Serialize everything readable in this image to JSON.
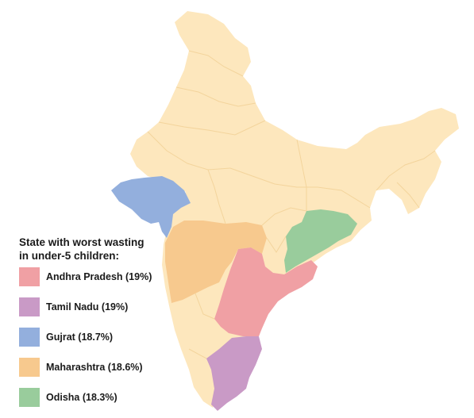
{
  "legend": {
    "title_line1": "State with worst wasting",
    "title_line2": "in under-5 children:",
    "items": [
      {
        "label": "Andhra Pradesh (19%)",
        "color": "#f0a0a4"
      },
      {
        "label": "Tamil Nadu (19%)",
        "color": "#c99ac6"
      },
      {
        "label": "Gujrat (18.7%)",
        "color": "#93afdd"
      },
      {
        "label": "Maharashtra (18.6%)",
        "color": "#f7c98e"
      },
      {
        "label": "Odisha (18.3%)",
        "color": "#99cc9c"
      }
    ]
  },
  "colors": {
    "base_land": "#fde7bd",
    "border": "#f3d49c"
  }
}
